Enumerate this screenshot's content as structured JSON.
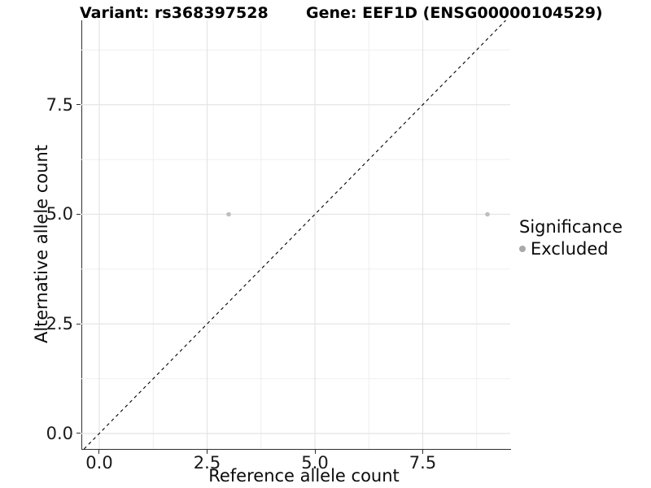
{
  "header": {
    "variant_title": "Variant: rs368397528",
    "gene_title": "Gene: EEF1D (ENSG00000104529)"
  },
  "chart_data": {
    "type": "scatter",
    "title": "Variant: rs368397528   Gene: EEF1D (ENSG00000104529)",
    "xlabel": "Reference allele count",
    "ylabel": "Alternative allele count",
    "xlim": [
      -0.415,
      9.528
    ],
    "ylim": [
      -0.353,
      9.425
    ],
    "x_tick_values": [
      0,
      2.5,
      5,
      7.5
    ],
    "x_tick_labels": [
      "0.0",
      "2.5",
      "5.0",
      "7.5"
    ],
    "y_tick_values": [
      0,
      2.5,
      5,
      7.5
    ],
    "y_tick_labels": [
      "0.0",
      "2.5",
      "5.0",
      "7.5"
    ],
    "grid": {
      "major_x": [
        0,
        2.5,
        5,
        7.5
      ],
      "minor_x": [
        1.25,
        3.75,
        6.25,
        8.75
      ],
      "major_y": [
        0,
        2.5,
        5,
        7.5
      ],
      "minor_y": [
        1.25,
        3.75,
        6.25,
        8.75
      ],
      "major_color": "#e4e4e4",
      "minor_color": "#efefef"
    },
    "reference_line": {
      "type": "identity",
      "slope": 1,
      "intercept": 0,
      "style": "dashed",
      "color": "#000000"
    },
    "series": [
      {
        "name": "Excluded",
        "color": "#bebebe",
        "points": [
          [
            3,
            5
          ],
          [
            9,
            5
          ]
        ]
      }
    ],
    "legend": {
      "title": "Significance",
      "position": "right",
      "entries": [
        {
          "label": "Excluded",
          "color": "#a9a9a9"
        }
      ]
    }
  },
  "colors": {
    "background": "#ffffff",
    "axis_line": "#2f2f2f",
    "tick_text": "#1a1a1a",
    "title_text": "#000000"
  }
}
